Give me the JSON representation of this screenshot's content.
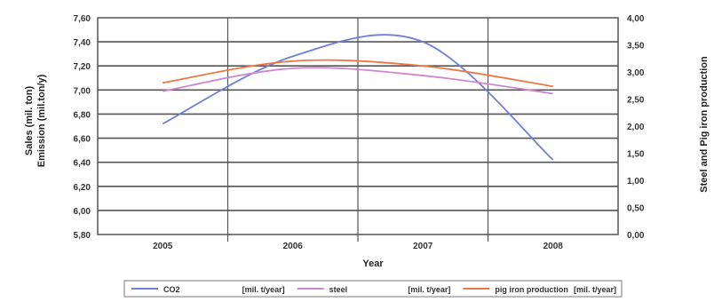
{
  "chart_data": {
    "type": "line",
    "x": [
      "2005",
      "2006",
      "2007",
      "2008"
    ],
    "xlabel": "Year",
    "ylabel_left": [
      "Sales (mil. ton)",
      "Emission (mil.ton/y)"
    ],
    "ylabel_right": "Steel and Pig iron production",
    "ylim_left": [
      5.8,
      7.6
    ],
    "ylim_right": [
      0.0,
      4.0
    ],
    "yticks_left": [
      "7,60",
      "7,40",
      "7,20",
      "7,00",
      "6,80",
      "6,60",
      "6,40",
      "6,20",
      "6,00",
      "5,80"
    ],
    "yticks_right": [
      "4,00",
      "3,50",
      "3,00",
      "2,50",
      "2,00",
      "1,50",
      "1,00",
      "0,50",
      "0,00"
    ],
    "grid": true,
    "legend_position": "bottom",
    "series": [
      {
        "name": "CO2",
        "unit": "[mil. t/year]",
        "color": "#6f7fd6",
        "axis": "left",
        "values": [
          6.72,
          7.28,
          7.4,
          6.42
        ]
      },
      {
        "name": "steel",
        "unit": "[mil. t/year]",
        "color": "#cc88cc",
        "axis": "left",
        "values": [
          6.99,
          7.18,
          7.12,
          6.97
        ]
      },
      {
        "name": "pig iron production",
        "unit": "[mil. t/year]",
        "color": "#ee7744",
        "axis": "left",
        "values": [
          7.06,
          7.24,
          7.2,
          7.03
        ]
      }
    ]
  }
}
